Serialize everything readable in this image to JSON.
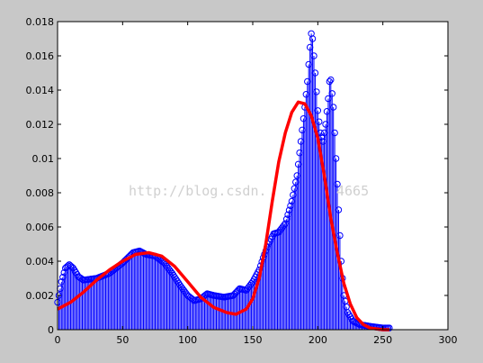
{
  "watermark": "http://blog.csdn.",
  "watermark_tail": "4665",
  "colors": {
    "figure_bg": "#c8c8c8",
    "axes_bg": "#ffffff",
    "stem": "#0000ff",
    "fit_line": "#ff0000"
  },
  "chart_data": {
    "type": "line",
    "title": "",
    "xlabel": "",
    "ylabel": "",
    "xlim": [
      0,
      300
    ],
    "ylim": [
      0,
      0.018
    ],
    "xticks": [
      0,
      50,
      100,
      150,
      200,
      250,
      300
    ],
    "xtick_labels": [
      "0",
      "50",
      "100",
      "150",
      "200",
      "250",
      "300"
    ],
    "yticks": [
      0,
      0.002,
      0.004,
      0.006,
      0.008,
      0.01,
      0.012,
      0.014,
      0.016,
      0.018
    ],
    "ytick_labels": [
      "0",
      "0.002",
      "0.004",
      "0.006",
      "0.008",
      "0.01",
      "0.012",
      "0.014",
      "0.016",
      "0.018"
    ],
    "grid": false,
    "histogram_anchors": [
      [
        0,
        0.0016
      ],
      [
        3,
        0.0028
      ],
      [
        6,
        0.0036
      ],
      [
        9,
        0.0038
      ],
      [
        12,
        0.0036
      ],
      [
        16,
        0.0031
      ],
      [
        20,
        0.0029
      ],
      [
        30,
        0.003
      ],
      [
        40,
        0.0033
      ],
      [
        50,
        0.0039
      ],
      [
        58,
        0.0045
      ],
      [
        63,
        0.0046
      ],
      [
        68,
        0.0044
      ],
      [
        75,
        0.0043
      ],
      [
        82,
        0.0039
      ],
      [
        88,
        0.0033
      ],
      [
        95,
        0.0025
      ],
      [
        100,
        0.002
      ],
      [
        105,
        0.0017
      ],
      [
        110,
        0.0018
      ],
      [
        115,
        0.0021
      ],
      [
        120,
        0.002
      ],
      [
        128,
        0.0019
      ],
      [
        135,
        0.002
      ],
      [
        140,
        0.0024
      ],
      [
        145,
        0.0023
      ],
      [
        150,
        0.0028
      ],
      [
        155,
        0.0035
      ],
      [
        158,
        0.0042
      ],
      [
        162,
        0.005
      ],
      [
        166,
        0.0056
      ],
      [
        170,
        0.0057
      ],
      [
        175,
        0.0062
      ],
      [
        180,
        0.0075
      ],
      [
        184,
        0.009
      ],
      [
        187,
        0.011
      ],
      [
        190,
        0.013
      ],
      [
        192,
        0.0145
      ],
      [
        194,
        0.0165
      ],
      [
        195,
        0.0173
      ],
      [
        196,
        0.017
      ],
      [
        198,
        0.015
      ],
      [
        200,
        0.0128
      ],
      [
        202,
        0.0115
      ],
      [
        204,
        0.011
      ],
      [
        206,
        0.012
      ],
      [
        208,
        0.0135
      ],
      [
        209,
        0.0145
      ],
      [
        210,
        0.0146
      ],
      [
        212,
        0.013
      ],
      [
        214,
        0.01
      ],
      [
        216,
        0.007
      ],
      [
        218,
        0.004
      ],
      [
        220,
        0.002
      ],
      [
        223,
        0.001
      ],
      [
        227,
        0.0005
      ],
      [
        232,
        0.0003
      ],
      [
        240,
        0.0002
      ],
      [
        250,
        0.0001
      ],
      [
        255,
        0.0001
      ]
    ],
    "fit_curve": [
      [
        0,
        0.0012
      ],
      [
        10,
        0.0016
      ],
      [
        20,
        0.0022
      ],
      [
        30,
        0.0029
      ],
      [
        40,
        0.0035
      ],
      [
        50,
        0.004
      ],
      [
        60,
        0.0044
      ],
      [
        70,
        0.0045
      ],
      [
        80,
        0.0043
      ],
      [
        90,
        0.0037
      ],
      [
        100,
        0.0028
      ],
      [
        110,
        0.0019
      ],
      [
        120,
        0.0013
      ],
      [
        130,
        0.001
      ],
      [
        137,
        0.0009
      ],
      [
        145,
        0.0012
      ],
      [
        150,
        0.0018
      ],
      [
        155,
        0.003
      ],
      [
        160,
        0.005
      ],
      [
        165,
        0.0075
      ],
      [
        170,
        0.0098
      ],
      [
        175,
        0.0115
      ],
      [
        180,
        0.0127
      ],
      [
        185,
        0.0133
      ],
      [
        190,
        0.0132
      ],
      [
        195,
        0.0125
      ],
      [
        200,
        0.0112
      ],
      [
        205,
        0.009
      ],
      [
        210,
        0.0065
      ],
      [
        215,
        0.0045
      ],
      [
        220,
        0.0027
      ],
      [
        225,
        0.0015
      ],
      [
        230,
        0.0007
      ],
      [
        235,
        0.0003
      ],
      [
        240,
        0.0001
      ],
      [
        245,
        5e-05
      ],
      [
        250,
        0.0
      ],
      [
        255,
        0.0
      ]
    ]
  }
}
